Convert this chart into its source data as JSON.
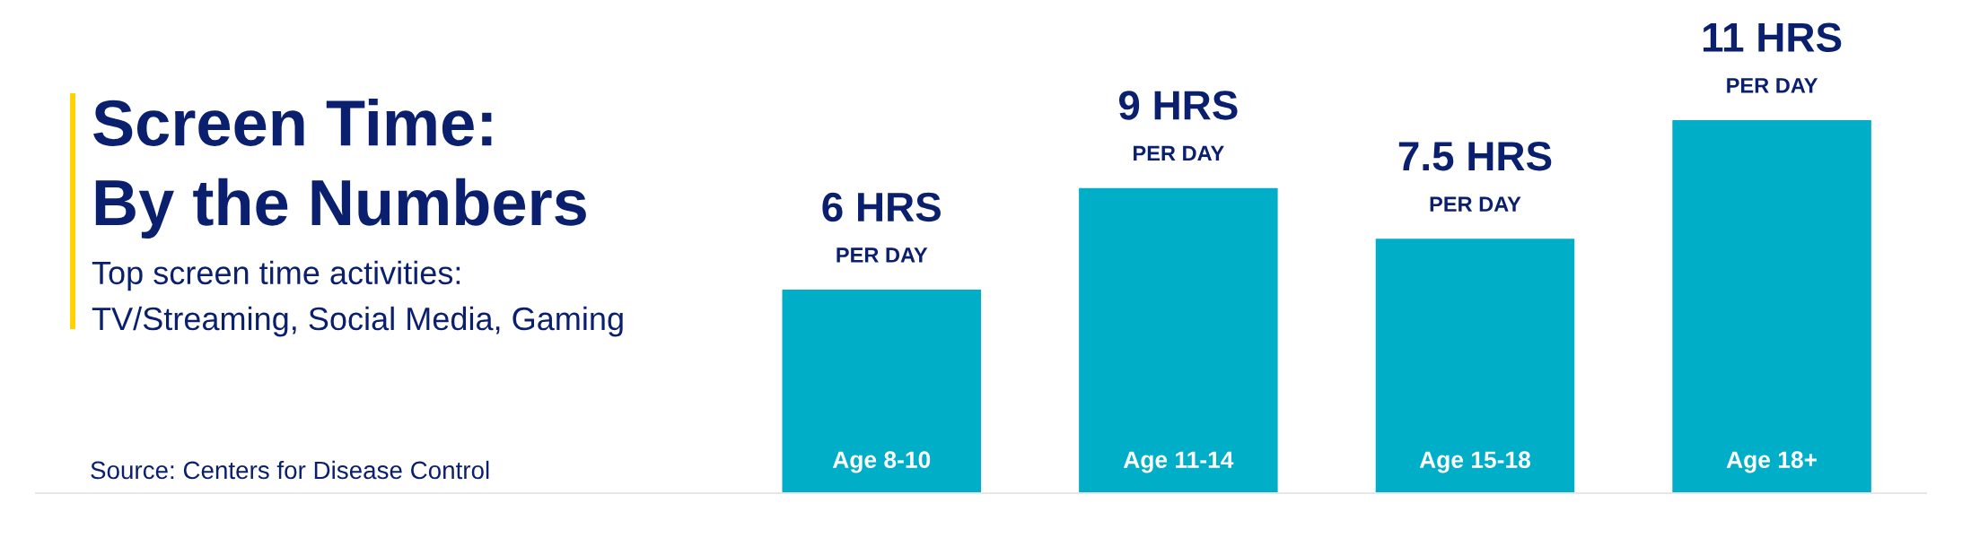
{
  "chart_data": {
    "type": "bar",
    "title": "Screen Time:\nBy the Numbers",
    "subtitle": "Top screen time activities:\nTV/Streaming, Social Media, Gaming",
    "annotations": [
      "Source: Centers for Disease Control"
    ],
    "categories": [
      "Age 8-10",
      "Age 11-14",
      "Age 15-18",
      "Age 18+"
    ],
    "values": [
      6,
      9,
      7.5,
      11
    ],
    "value_labels": [
      "6 HRS\nPER DAY",
      "9 HRS\nPER DAY",
      "7.5 HRS\nPER DAY",
      "11 HRS\nPER DAY"
    ],
    "color": "#00aec7",
    "tick_labels": "x"
  }
}
